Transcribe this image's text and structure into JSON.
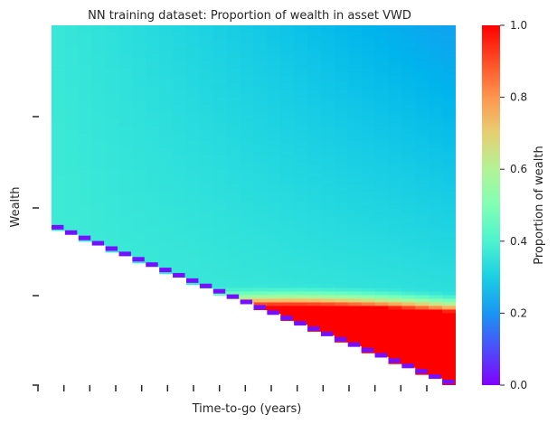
{
  "chart_data": {
    "type": "heatmap",
    "title": "NN training dataset: Proportion of wealth in asset VWD",
    "xlabel": "Time-to-go (years)",
    "ylabel": "Wealth",
    "colorbar": {
      "label": "Proportion of wealth",
      "range": [
        0.0,
        1.0
      ],
      "ticks": [
        "0.0",
        "0.2",
        "0.4",
        "0.6",
        "0.8",
        "1.0"
      ],
      "colormap": "rainbow"
    },
    "x_columns": 30,
    "x_tick_count": 16,
    "x_tick_labels": [],
    "y_tick_count": 5,
    "y_tick_labels": [],
    "value_regions": [
      {
        "region": "high wealth, long time-to-go",
        "approx_value": 0.25
      },
      {
        "region": "high wealth, short time-to-go",
        "approx_value": 0.35
      },
      {
        "region": "medium wealth band",
        "approx_value": 0.4
      },
      {
        "region": "low wealth, long time-to-go",
        "approx_value": 1.0
      },
      {
        "region": "lowest wealth, short time-to-go",
        "approx_value": 0.0
      }
    ]
  }
}
